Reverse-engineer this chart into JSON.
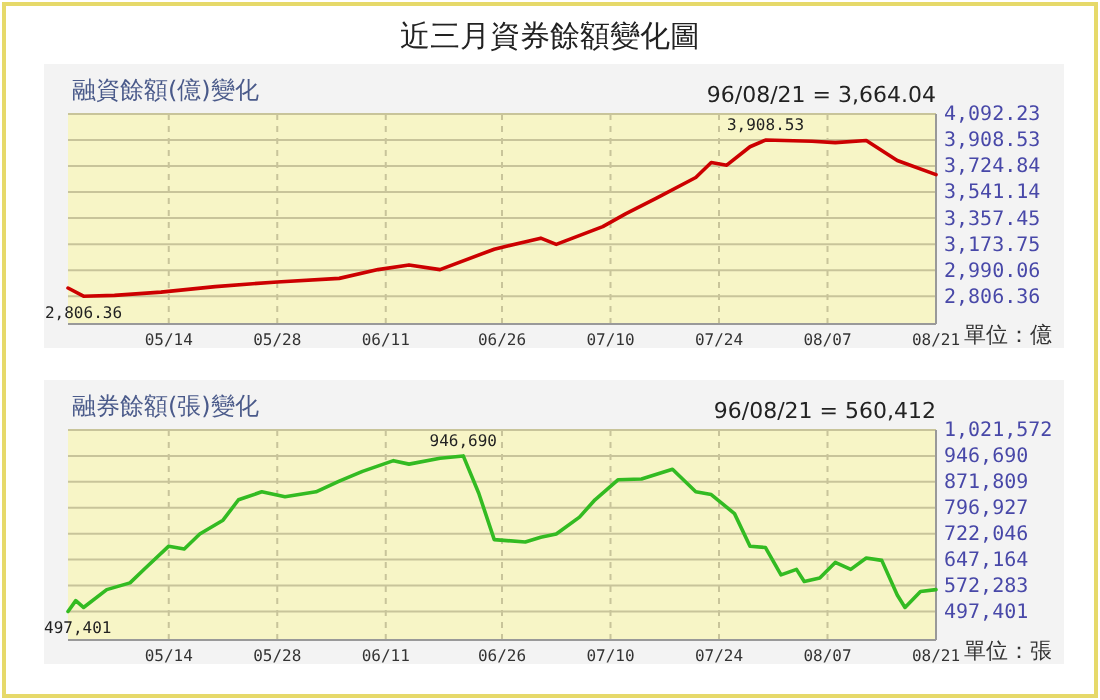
{
  "chart_data": [
    {
      "type": "line",
      "title": "近三月資券餘額變化圖",
      "subtitle": "融資餘額(億)變化",
      "x": [
        "--05-01",
        "--05-03",
        "--05-07",
        "--05-13",
        "--05-20",
        "--05-28",
        "--06-05",
        "--06-10",
        "--06-14",
        "--06-18",
        "--06-25",
        "--07-01",
        "--07-03",
        "--07-09",
        "--07-12",
        "--07-16",
        "--07-21",
        "--07-23",
        "--07-25",
        "--07-28",
        "--07-30",
        "--08-05",
        "--08-08",
        "--08-12",
        "--08-16",
        "--08-21"
      ],
      "series": [
        {
          "color": "#cc0000",
          "values": [
            2864,
            2806.36,
            2812,
            2835,
            2874,
            2907,
            2932,
            2994,
            3027,
            2994,
            3138,
            3216,
            3172,
            3297,
            3389,
            3500,
            3644,
            3750,
            3731,
            3861,
            3908.53,
            3900,
            3890,
            3905,
            3764,
            3664.04
          ]
        }
      ],
      "xlim": [
        "--05-01",
        "--08-21"
      ],
      "xticks": [
        {
          "value": "--05-14",
          "label": "05/14"
        },
        {
          "value": "--05-28",
          "label": "05/28"
        },
        {
          "value": "--06-11",
          "label": "06/11"
        },
        {
          "value": "--06-26",
          "label": "06/26"
        },
        {
          "value": "--07-10",
          "label": "07/10"
        },
        {
          "value": "--07-24",
          "label": "07/24"
        },
        {
          "value": "--08-07",
          "label": "08/07"
        },
        {
          "value": "--08-21",
          "label": "08/21"
        }
      ],
      "ylim": [
        2610,
        4092.23
      ],
      "yticks": [
        {
          "value": 2806.36,
          "label": "2,806.36"
        },
        {
          "value": 2990.06,
          "label": "2,990.06"
        },
        {
          "value": 3173.75,
          "label": "3,173.75"
        },
        {
          "value": 3357.45,
          "label": "3,357.45"
        },
        {
          "value": 3541.14,
          "label": "3,541.14"
        },
        {
          "value": 3724.84,
          "label": "3,724.84"
        },
        {
          "value": 3908.53,
          "label": "3,908.53"
        },
        {
          "value": 4092.23,
          "label": "4,092.23"
        }
      ],
      "grid": true,
      "marker": "none",
      "line_style": "solid",
      "annotations": [
        "96/08/21 = 3,664.04",
        "單位：億",
        {
          "text": "2,806.36",
          "x": "--05-03",
          "y": 2806.36
        },
        {
          "text": "3,908.53",
          "x": "--07-30",
          "y": 3908.53
        }
      ]
    },
    {
      "type": "line",
      "title": "融券餘額(張)變化",
      "x": [
        "--05-01",
        "--05-02",
        "--05-03",
        "--05-06",
        "--05-09",
        "--05-11",
        "--05-14",
        "--05-16",
        "--05-18",
        "--05-21",
        "--05-23",
        "--05-26",
        "--05-29",
        "--06-02",
        "--06-05",
        "--06-08",
        "--06-12",
        "--06-14",
        "--06-18",
        "--06-21",
        "--06-23",
        "--06-25",
        "--06-29",
        "--07-01",
        "--07-03",
        "--07-06",
        "--07-08",
        "--07-11",
        "--07-14",
        "--07-18",
        "--07-21",
        "--07-23",
        "--07-26",
        "--07-28",
        "--07-30",
        "--08-01",
        "--08-03",
        "--08-04",
        "--08-06",
        "--08-08",
        "--08-10",
        "--08-12",
        "--08-14",
        "--08-16",
        "--08-17",
        "--08-19",
        "--08-21"
      ],
      "series": [
        {
          "color": "#33bb22",
          "values": [
            497401,
            528600,
            509000,
            560500,
            580000,
            623000,
            686000,
            678000,
            721000,
            761000,
            820000,
            843000,
            829000,
            843000,
            874000,
            902000,
            933000,
            923000,
            940000,
            946690,
            839000,
            705000,
            698000,
            712000,
            721000,
            770000,
            820000,
            878000,
            880000,
            908000,
            843000,
            835000,
            780000,
            686000,
            682000,
            603000,
            619000,
            584000,
            594000,
            639000,
            619000,
            652000,
            645000,
            545000,
            509000,
            555000,
            560412
          ]
        }
      ],
      "xlim": [
        "--05-01",
        "--08-21"
      ],
      "xticks": [
        {
          "value": "--05-14",
          "label": "05/14"
        },
        {
          "value": "--05-28",
          "label": "05/28"
        },
        {
          "value": "--06-11",
          "label": "06/11"
        },
        {
          "value": "--06-26",
          "label": "06/26"
        },
        {
          "value": "--07-10",
          "label": "07/10"
        },
        {
          "value": "--07-24",
          "label": "07/24"
        },
        {
          "value": "--08-07",
          "label": "08/07"
        },
        {
          "value": "--08-21",
          "label": "08/21"
        }
      ],
      "ylim": [
        415000,
        1021572
      ],
      "yticks": [
        {
          "value": 497401,
          "label": "497,401"
        },
        {
          "value": 572283,
          "label": "572,283"
        },
        {
          "value": 647164,
          "label": "647,164"
        },
        {
          "value": 722046,
          "label": "722,046"
        },
        {
          "value": 796927,
          "label": "796,927"
        },
        {
          "value": 871809,
          "label": "871,809"
        },
        {
          "value": 946690,
          "label": "946,690"
        },
        {
          "value": 1021572,
          "label": "1,021,572"
        }
      ],
      "grid": true,
      "marker": "none",
      "line_style": "solid",
      "annotations": [
        "96/08/21 = 560,412",
        "單位：張",
        {
          "text": "497,401",
          "x": "--05-01",
          "y": 497401
        },
        {
          "text": "946,690",
          "x": "--06-21",
          "y": 946690
        }
      ]
    }
  ]
}
